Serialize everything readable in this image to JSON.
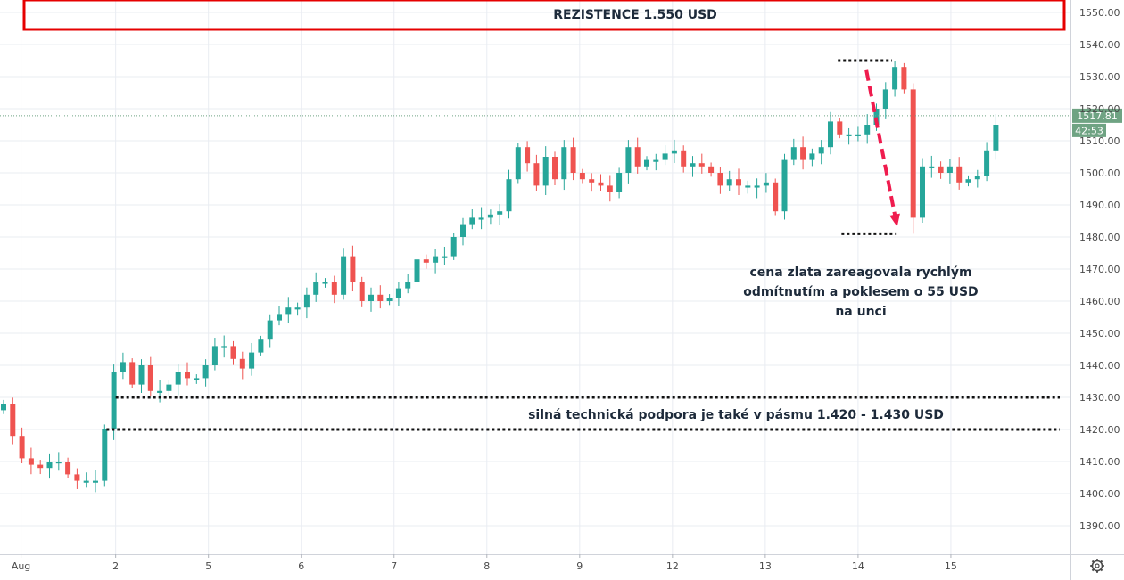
{
  "chart_data": {
    "type": "candlestick",
    "title": "",
    "xlabel": "",
    "ylabel": "",
    "ylim": [
      1380,
      1555
    ],
    "y_ticks": [
      1390,
      1400,
      1410,
      1420,
      1430,
      1440,
      1450,
      1460,
      1470,
      1480,
      1490,
      1500,
      1510,
      1520,
      1530,
      1540,
      1550
    ],
    "y_tick_labels": [
      "1390.00",
      "1400.00",
      "1410.00",
      "1420.00",
      "1430.00",
      "1440.00",
      "1450.00",
      "1460.00",
      "1470.00",
      "1480.00",
      "1490.00",
      "1500.00",
      "1510.00",
      "1520.00",
      "1530.00",
      "1540.00",
      "1550.00"
    ],
    "x_ticks": [
      {
        "label": "Aug",
        "bar": 1.9
      },
      {
        "label": "2",
        "bar": 12.2
      },
      {
        "label": "5",
        "bar": 22.3
      },
      {
        "label": "6",
        "bar": 32.4
      },
      {
        "label": "7",
        "bar": 42.5
      },
      {
        "label": "8",
        "bar": 52.6
      },
      {
        "label": "9",
        "bar": 62.7
      },
      {
        "label": "12",
        "bar": 72.8
      },
      {
        "label": "13",
        "bar": 82.9
      },
      {
        "label": "14",
        "bar": 93.0
      },
      {
        "label": "15",
        "bar": 103.1
      }
    ],
    "bars": 109,
    "closes": [
      1428,
      1418,
      1411,
      1409,
      1408,
      1410,
      1410,
      1406,
      1404,
      1404,
      1404,
      1420,
      1438,
      1441,
      1434,
      1440,
      1432,
      1432,
      1434,
      1438,
      1436,
      1436,
      1440,
      1446,
      1446,
      1442,
      1439,
      1444,
      1448,
      1454,
      1456,
      1458,
      1458,
      1462,
      1466,
      1466,
      1462,
      1474,
      1466,
      1460,
      1462,
      1460,
      1461,
      1464,
      1466,
      1473,
      1472,
      1474,
      1474,
      1480,
      1484,
      1486,
      1486,
      1487,
      1488,
      1498,
      1508,
      1503,
      1496,
      1505,
      1498,
      1508,
      1500,
      1498,
      1497,
      1496,
      1494,
      1500,
      1508,
      1502,
      1504,
      1504,
      1506,
      1507,
      1502,
      1503,
      1502,
      1500,
      1496,
      1498,
      1496,
      1496,
      1496,
      1497,
      1488,
      1504,
      1508,
      1504,
      1506,
      1508,
      1516,
      1512,
      1512,
      1512,
      1515,
      1520,
      1526,
      1533,
      1526,
      1486,
      1502,
      1502,
      1500,
      1502,
      1497,
      1498,
      1499,
      1507,
      1515
    ],
    "candle_colors": {
      "up": "#26a69a",
      "down": "#ef5350"
    },
    "current_price": {
      "label": "1517.81",
      "value": 1517.81,
      "countdown": "42:53",
      "color": "#6fa383"
    },
    "resistance": {
      "label": "REZISTENCE 1.550 USD",
      "value": 1550,
      "color": "#e60000"
    },
    "support": {
      "label": "silná technická podpora je také v pásmu 1.420 - 1.430 USD",
      "upper": 1430,
      "lower": 1420
    },
    "reaction_annotation": [
      "cena zlata zareagovala rychlým",
      "odmítnutím a poklesem o 55 USD",
      "na unci"
    ],
    "spike": {
      "high": 1535,
      "low": 1481
    }
  }
}
